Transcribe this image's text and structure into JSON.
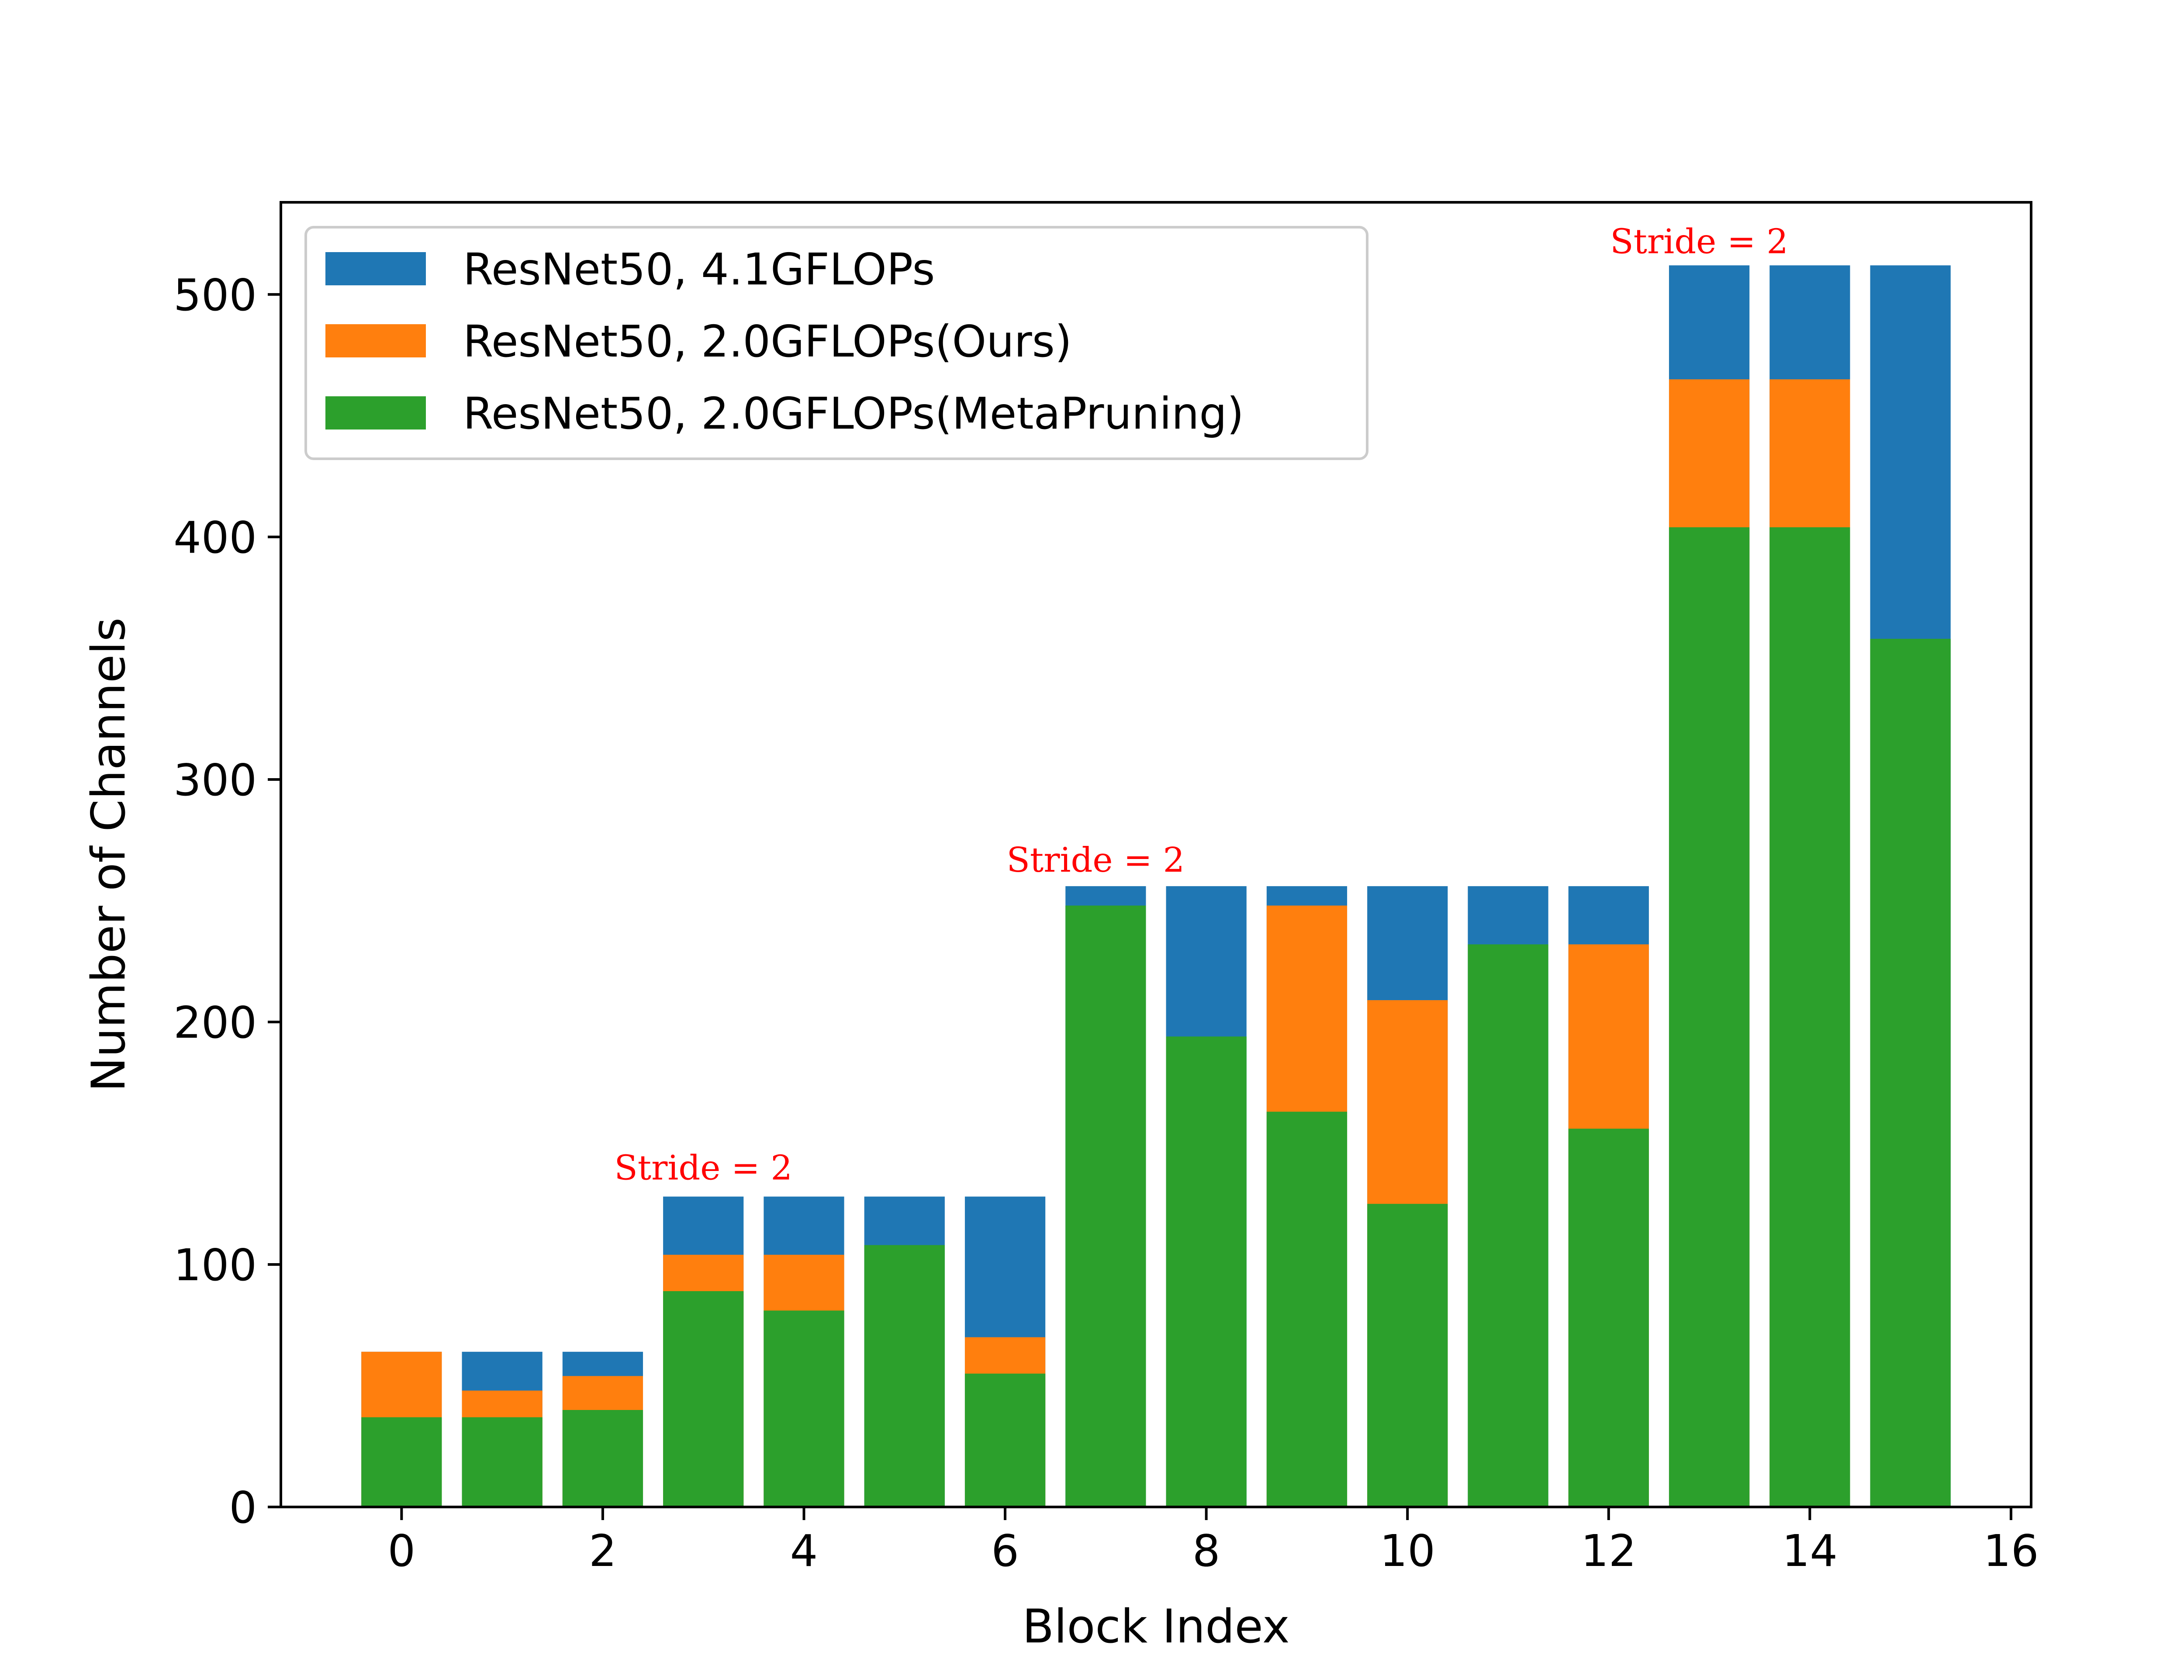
{
  "chart_data": {
    "type": "bar",
    "stacked": "overlay",
    "title": "",
    "xlabel": "Block Index",
    "ylabel": "Number of Channels",
    "x": [
      0,
      1,
      2,
      3,
      4,
      5,
      6,
      7,
      8,
      9,
      10,
      11,
      12,
      13,
      14,
      15
    ],
    "xticks": [
      0,
      2,
      4,
      6,
      8,
      10,
      12,
      14,
      16
    ],
    "yticks": [
      0,
      100,
      200,
      300,
      400,
      500
    ],
    "xlim": [
      -1.2,
      16.2
    ],
    "ylim": [
      0,
      538
    ],
    "grid": false,
    "legend_position": "upper-left",
    "series": [
      {
        "name": "ResNet50, 4.1GFLOPs",
        "color": "#1f77b4",
        "values": [
          64,
          64,
          64,
          128,
          128,
          128,
          128,
          256,
          256,
          256,
          256,
          256,
          256,
          512,
          512,
          512
        ]
      },
      {
        "name": "ResNet50, 2.0GFLOPs(Ours)",
        "color": "#ff7f0e",
        "values": [
          64,
          48,
          54,
          104,
          104,
          0,
          70,
          0,
          0,
          248,
          209,
          0,
          232,
          465,
          465,
          0
        ]
      },
      {
        "name": "ResNet50, 2.0GFLOPs(MetaPruning)",
        "color": "#2ca02c",
        "values": [
          37,
          37,
          40,
          89,
          81,
          108,
          55,
          248,
          194,
          163,
          125,
          232,
          156,
          404,
          404,
          358
        ]
      }
    ],
    "annotations": [
      {
        "text": "Stride = 2",
        "x": 3,
        "y": 135,
        "color": "#ff0000"
      },
      {
        "text": "Stride = 2",
        "x": 6.9,
        "y": 262,
        "color": "#ff0000"
      },
      {
        "text": "Stride = 2",
        "x": 12.9,
        "y": 517,
        "color": "#ff0000"
      }
    ]
  }
}
